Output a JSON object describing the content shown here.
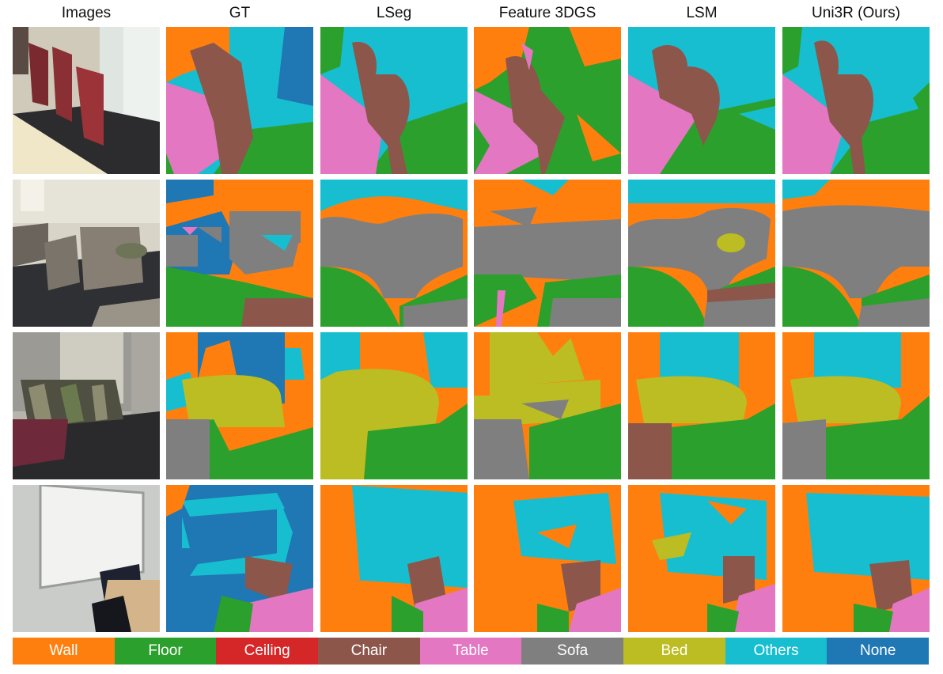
{
  "figure": {
    "columns": [
      "Images",
      "GT",
      "LSeg",
      "Feature 3DGS",
      "LSM",
      "Uni3R (Ours)"
    ],
    "legend": [
      {
        "label": "Wall",
        "color": "#ff7f0e"
      },
      {
        "label": "Floor",
        "color": "#2ca02c"
      },
      {
        "label": "Ceiling",
        "color": "#d62728"
      },
      {
        "label": "Chair",
        "color": "#8c564b"
      },
      {
        "label": "Table",
        "color": "#e377c2"
      },
      {
        "label": "Sofa",
        "color": "#7f7f7f"
      },
      {
        "label": "Bed",
        "color": "#bcbd22"
      },
      {
        "label": "Others",
        "color": "#17becf"
      },
      {
        "label": "None",
        "color": "#1f77b4"
      }
    ],
    "rows": [
      {
        "scene": "conference-room-chairs"
      },
      {
        "scene": "lounge-sofas"
      },
      {
        "scene": "bedroom-bed"
      },
      {
        "scene": "whiteboard-room"
      }
    ]
  }
}
